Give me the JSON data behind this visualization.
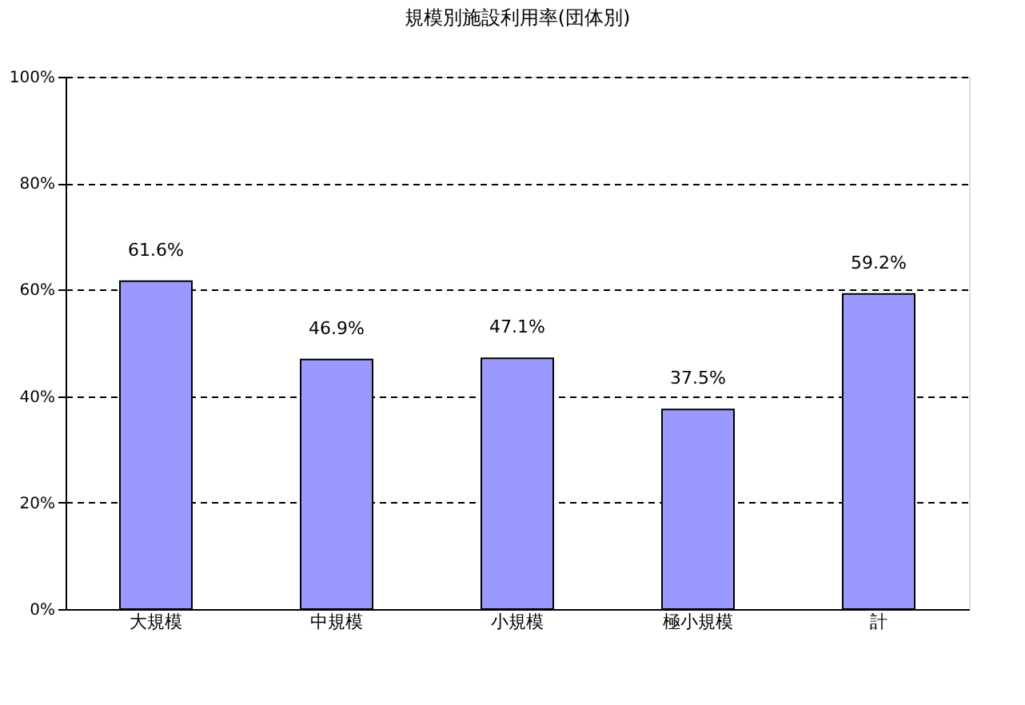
{
  "chart_data": {
    "type": "bar",
    "title": "規模別施設利用率(団体別)",
    "categories": [
      "大規模",
      "中規模",
      "小規模",
      "極小規模",
      "計"
    ],
    "values": [
      61.6,
      46.9,
      47.1,
      37.5,
      59.2
    ],
    "value_labels": [
      "61.6%",
      "46.9%",
      "47.1%",
      "37.5%",
      "59.2%"
    ],
    "color": "#9999ff",
    "ylim": [
      0,
      100
    ],
    "yticks": [
      {
        "value": 0,
        "label": "0%"
      },
      {
        "value": 20,
        "label": "20%"
      },
      {
        "value": 40,
        "label": "40%"
      },
      {
        "value": 60,
        "label": "60%"
      },
      {
        "value": 80,
        "label": "80%"
      },
      {
        "value": 100,
        "label": "100%"
      }
    ],
    "grid": "y",
    "line_style": "dashed"
  }
}
